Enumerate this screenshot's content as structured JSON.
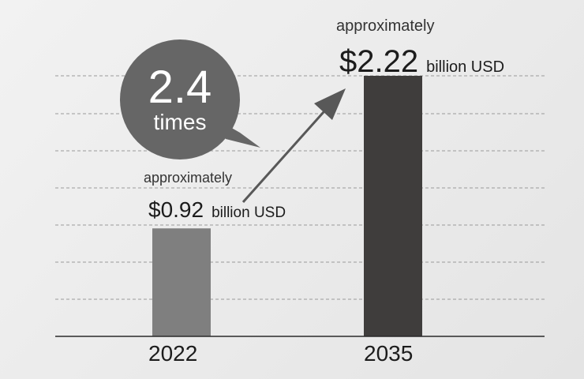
{
  "chart_data": {
    "type": "bar",
    "categories": [
      "2022",
      "2035"
    ],
    "values": [
      0.92,
      2.22
    ],
    "ylim": [
      0,
      2.8
    ],
    "grid": true,
    "colors": [
      "#7f7f7f",
      "#3f3d3c"
    ],
    "bar_labels": [
      {
        "prefix": "approximately",
        "value": "$0.92",
        "unit": "billion USD"
      },
      {
        "prefix": "approximately",
        "value": "$2.22",
        "unit": "billion USD"
      }
    ],
    "annotation": {
      "number": "2.4",
      "word": "times"
    }
  }
}
